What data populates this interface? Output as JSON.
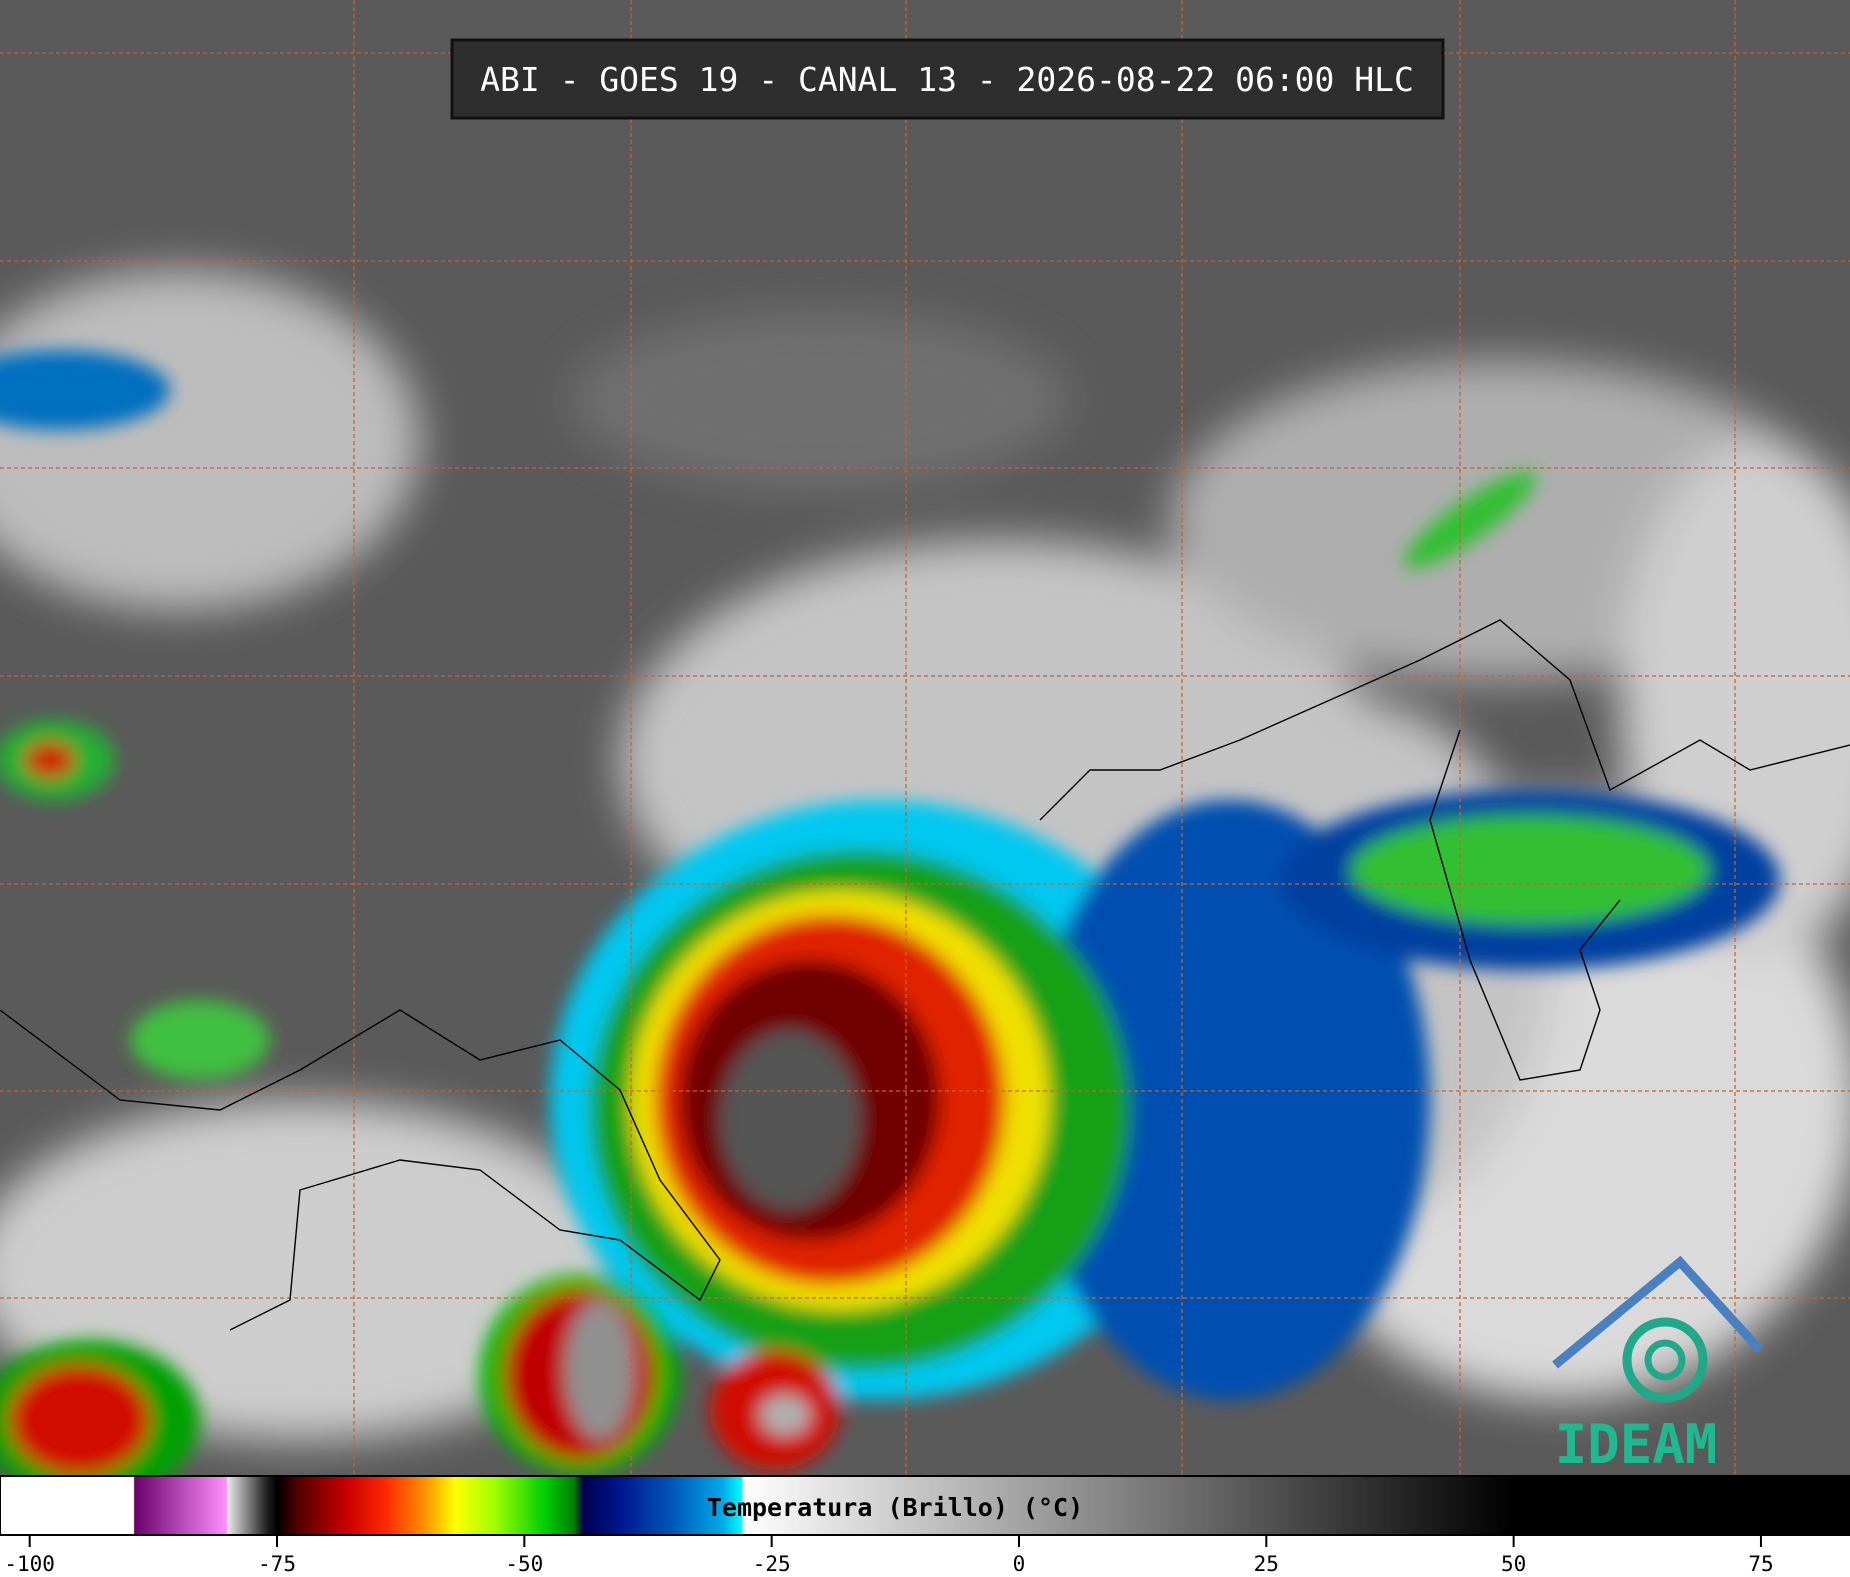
{
  "header": {
    "title": "ABI - GOES 19 - CANAL 13 - 2026-08-22 06:00 HLC"
  },
  "colorbar": {
    "label": "Temperatura (Brillo) (°C)",
    "lim": [
      -103,
      84
    ],
    "ticks": [
      -100,
      -75,
      -50,
      -25,
      0,
      25,
      50,
      75
    ],
    "stops": [
      {
        "value": -103,
        "color": "#ffffff"
      },
      {
        "value": -89.5,
        "color": "#ffffff"
      },
      {
        "value": -89.4,
        "color": "#6a006a"
      },
      {
        "value": -80.1,
        "color": "#ff90ff"
      },
      {
        "value": -80,
        "color": "#e8e8e8"
      },
      {
        "value": -76,
        "color": "#202020"
      },
      {
        "value": -75,
        "color": "#000000"
      },
      {
        "value": -73,
        "color": "#500000"
      },
      {
        "value": -68,
        "color": "#c80000"
      },
      {
        "value": -64,
        "color": "#ff2800"
      },
      {
        "value": -60,
        "color": "#ff9400"
      },
      {
        "value": -57,
        "color": "#ffff00"
      },
      {
        "value": -53,
        "color": "#a0ff00"
      },
      {
        "value": -48,
        "color": "#00d000"
      },
      {
        "value": -45,
        "color": "#008000"
      },
      {
        "value": -44,
        "color": "#000050"
      },
      {
        "value": -40,
        "color": "#001890"
      },
      {
        "value": -35,
        "color": "#0058b8"
      },
      {
        "value": -30,
        "color": "#00a8e8"
      },
      {
        "value": -28,
        "color": "#00ffff"
      },
      {
        "value": -27.9,
        "color": "#ffffff"
      },
      {
        "value": 50,
        "color": "#000000"
      },
      {
        "value": 84,
        "color": "#000000"
      }
    ]
  },
  "logo": {
    "text": "IDEAM"
  }
}
